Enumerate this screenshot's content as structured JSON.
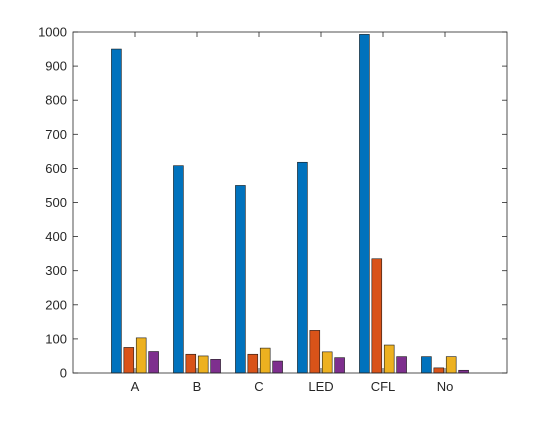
{
  "chart_data": {
    "type": "bar",
    "title": "",
    "xlabel": "",
    "ylabel": "",
    "categories": [
      "A",
      "B",
      "C",
      "LED",
      "CFL",
      "No"
    ],
    "ylim": [
      0,
      1000
    ],
    "yticks": [
      0,
      100,
      200,
      300,
      400,
      500,
      600,
      700,
      800,
      900,
      1000
    ],
    "grid": false,
    "legend": "none",
    "series": [
      {
        "color": "#0072BD",
        "values": [
          950,
          608,
          550,
          618,
          993,
          48
        ]
      },
      {
        "color": "#D95319",
        "values": [
          75,
          55,
          55,
          125,
          335,
          15
        ]
      },
      {
        "color": "#EDB120",
        "values": [
          103,
          50,
          73,
          62,
          82,
          48
        ]
      },
      {
        "color": "#7E2F8E",
        "values": [
          63,
          40,
          35,
          45,
          48,
          8
        ]
      }
    ]
  }
}
